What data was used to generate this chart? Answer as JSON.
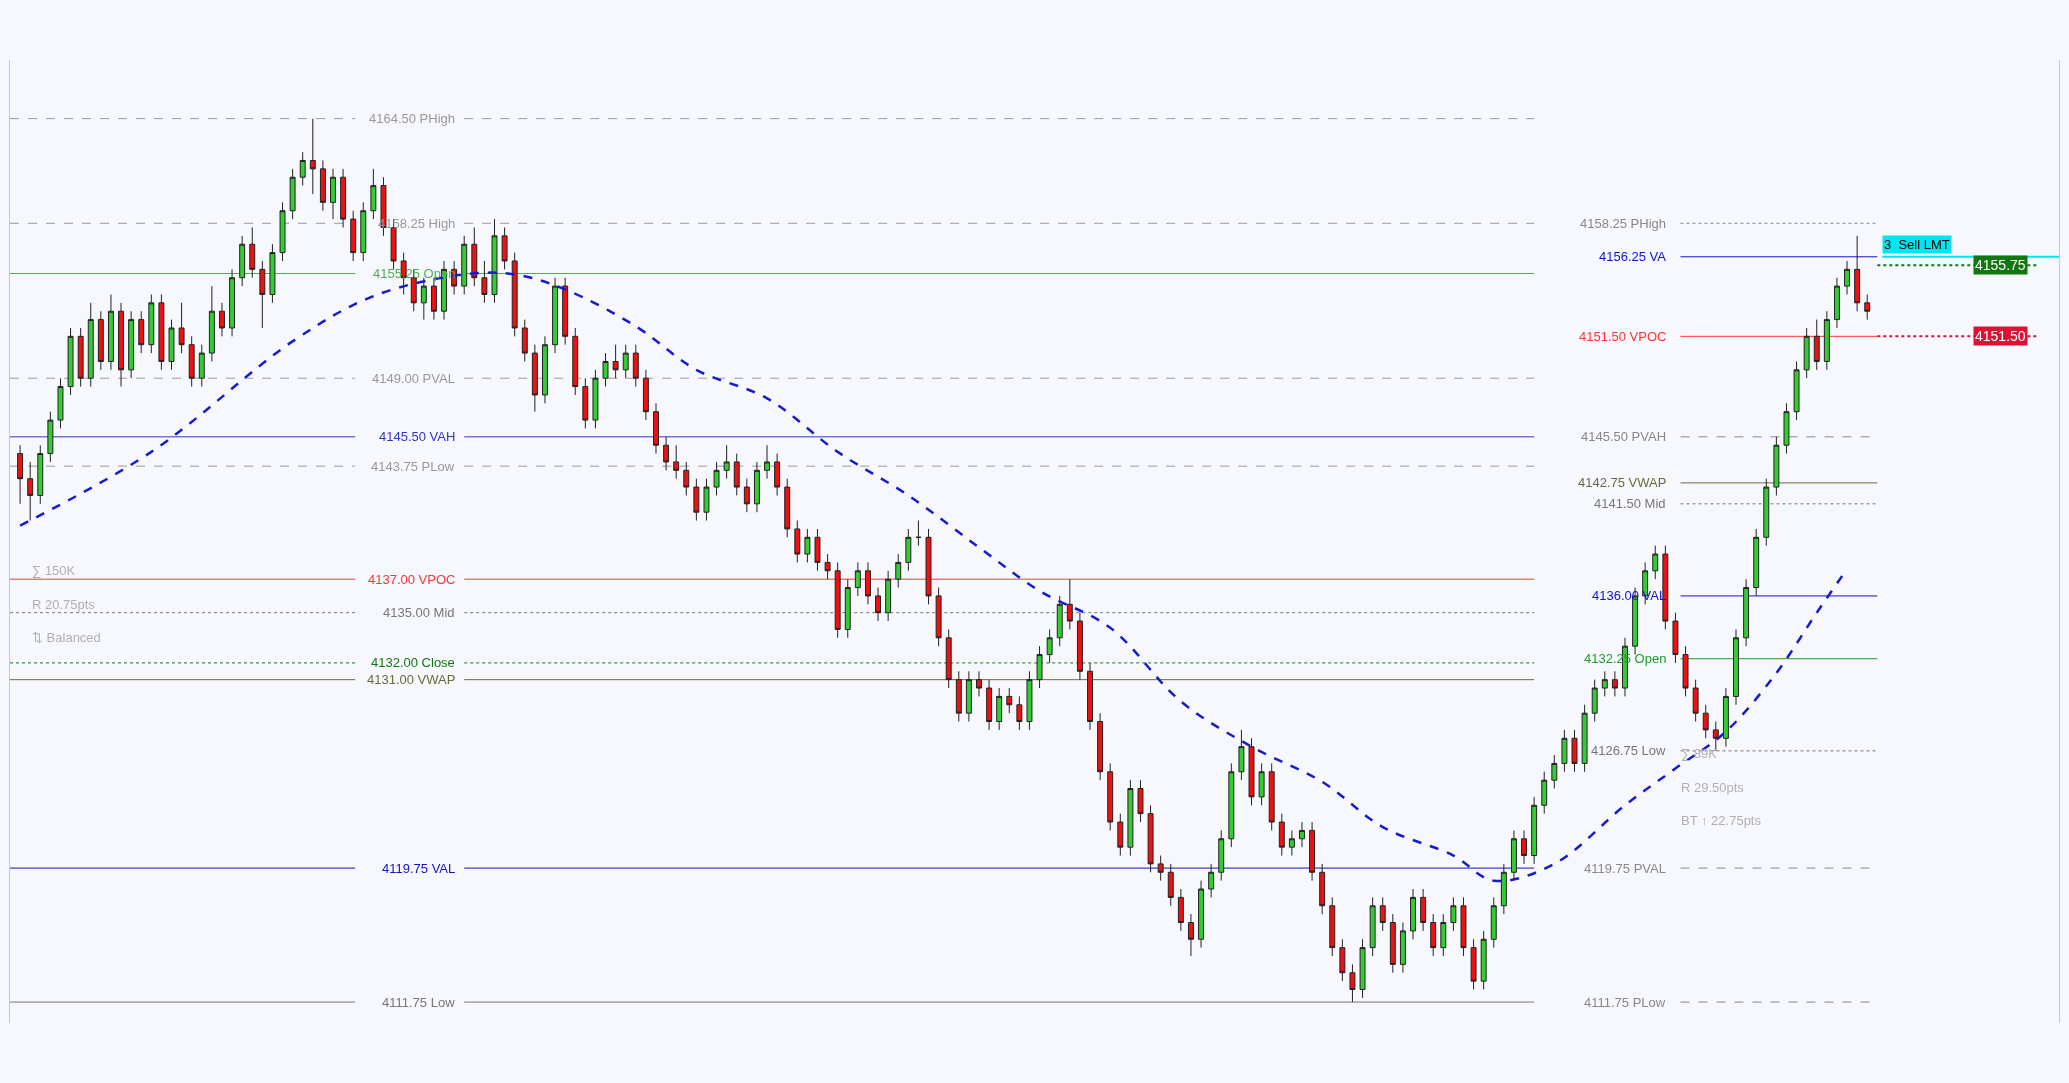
{
  "chart_data": {
    "type": "candlestick",
    "relative": false,
    "ylim": [
      4110.5,
      4168
    ],
    "categories": [
      null,
      null,
      null,
      null,
      null,
      null,
      null,
      null,
      null,
      null,
      null,
      null,
      null,
      null,
      null,
      null,
      null,
      null,
      null,
      null,
      null,
      null,
      null,
      null,
      null,
      null,
      null,
      null,
      null,
      null,
      null,
      null,
      null,
      null,
      null,
      null,
      null,
      null,
      null,
      null,
      null,
      null,
      null,
      null,
      null,
      null,
      null,
      null,
      null,
      null,
      null,
      null,
      null,
      null,
      null,
      null,
      null,
      null,
      null,
      null,
      null,
      null,
      null,
      null,
      null,
      null,
      null,
      null,
      null,
      null,
      null,
      null,
      null,
      null,
      null,
      null,
      null,
      null,
      null,
      null,
      null,
      null,
      null,
      null,
      null,
      null,
      null,
      null,
      null,
      null,
      null,
      null,
      null,
      null,
      null,
      null,
      null,
      null,
      null,
      null,
      null,
      null,
      null,
      null,
      null,
      null,
      null,
      null,
      null,
      null,
      null,
      null,
      null,
      null,
      null,
      null,
      null,
      null,
      null,
      null,
      null,
      null,
      null,
      null,
      null,
      null,
      null,
      null,
      null,
      null,
      null,
      null,
      null,
      null,
      null,
      null,
      null,
      null,
      null,
      null,
      null,
      null,
      null,
      null,
      null,
      null,
      null,
      null,
      null,
      null,
      null,
      null,
      null,
      null,
      null,
      null,
      null,
      null,
      null,
      null,
      null,
      null,
      null,
      null,
      null,
      null,
      null,
      null,
      null,
      null,
      null,
      null,
      null,
      null,
      null,
      null,
      null,
      null,
      null,
      null,
      null,
      null,
      null,
      null
    ],
    "ohlc": [
      [
        4144.5,
        4145,
        4141.5,
        4143
      ],
      [
        4143,
        4144,
        4140.5,
        4142
      ],
      [
        4142,
        4145,
        4141.5,
        4144.5
      ],
      [
        4144.5,
        4147,
        4144,
        4146.5
      ],
      [
        4146.5,
        4149,
        4146,
        4148.5
      ],
      [
        4148.5,
        4152,
        4148,
        4151.5
      ],
      [
        4151.5,
        4152,
        4148.5,
        4149
      ],
      [
        4149,
        4153.5,
        4148.5,
        4152.5
      ],
      [
        4152.5,
        4153,
        4149.5,
        4150
      ],
      [
        4150,
        4154,
        4149.5,
        4153
      ],
      [
        4153,
        4153.5,
        4148.5,
        4149.5
      ],
      [
        4149.5,
        4153,
        4149,
        4152.5
      ],
      [
        4152.5,
        4153,
        4150.5,
        4151
      ],
      [
        4151,
        4154,
        4150.5,
        4153.5
      ],
      [
        4153.5,
        4154,
        4149.5,
        4150
      ],
      [
        4150,
        4152.5,
        4149.5,
        4152
      ],
      [
        4152,
        4153.5,
        4150.5,
        4151
      ],
      [
        4151,
        4151.5,
        4148.5,
        4149
      ],
      [
        4149,
        4151,
        4148.5,
        4150.5
      ],
      [
        4150.5,
        4154.5,
        4150,
        4153
      ],
      [
        4153,
        4153.5,
        4151.5,
        4152
      ],
      [
        4152,
        4155.5,
        4151.5,
        4155
      ],
      [
        4155,
        4157.5,
        4154.5,
        4157
      ],
      [
        4157,
        4158,
        4155,
        4155.5
      ],
      [
        4155.5,
        4156,
        4152,
        4154
      ],
      [
        4154,
        4157,
        4153.5,
        4156.5
      ],
      [
        4156.5,
        4159.5,
        4156,
        4159
      ],
      [
        4159,
        4161.5,
        4158.5,
        4161
      ],
      [
        4161,
        4162.5,
        4160.5,
        4162
      ],
      [
        4162,
        4164.5,
        4160,
        4161.5
      ],
      [
        4161.5,
        4162,
        4159,
        4159.5
      ],
      [
        4159.5,
        4161.5,
        4158.5,
        4161
      ],
      [
        4161,
        4161.5,
        4158,
        4158.5
      ],
      [
        4158.5,
        4159,
        4156,
        4156.5
      ],
      [
        4156.5,
        4159.5,
        4156,
        4159
      ],
      [
        4159,
        4161.5,
        4158.5,
        4160.5
      ],
      [
        4160.5,
        4161,
        4157.5,
        4158
      ],
      [
        4158,
        4158.5,
        4155.5,
        4156
      ],
      [
        4156,
        4156.5,
        4154,
        4155
      ],
      [
        4155,
        4155.5,
        4153,
        4153.5
      ],
      [
        4153.5,
        4155,
        4152.5,
        4154.5
      ],
      [
        4154.5,
        4155,
        4152.5,
        4153
      ],
      [
        4153,
        4156,
        4152.5,
        4155.5
      ],
      [
        4155.5,
        4156,
        4154,
        4154.5
      ],
      [
        4154.5,
        4157.5,
        4154,
        4157
      ],
      [
        4157,
        4158,
        4154.5,
        4155
      ],
      [
        4155,
        4156,
        4153.5,
        4154
      ],
      [
        4154,
        4158.5,
        4153.5,
        4157.5
      ],
      [
        4157.5,
        4158,
        4155.5,
        4156
      ],
      [
        4156,
        4156.5,
        4151.5,
        4152
      ],
      [
        4152,
        4152.5,
        4150,
        4150.5
      ],
      [
        4150.5,
        4151,
        4147,
        4148
      ],
      [
        4148,
        4151.5,
        4147.5,
        4151
      ],
      [
        4151,
        4155,
        4150.5,
        4154.5
      ],
      [
        4154.5,
        4155,
        4151,
        4151.5
      ],
      [
        4151.5,
        4152,
        4148,
        4148.5
      ],
      [
        4148.5,
        4149,
        4146,
        4146.5
      ],
      [
        4146.5,
        4149.5,
        4146,
        4149
      ],
      [
        4149,
        4150.5,
        4148.5,
        4150
      ],
      [
        4150,
        4151,
        4149,
        4149.5
      ],
      [
        4149.5,
        4151,
        4149,
        4150.5
      ],
      [
        4150.5,
        4151,
        4148.5,
        4149
      ],
      [
        4149,
        4149.5,
        4146.5,
        4147
      ],
      [
        4147,
        4147.5,
        4144.5,
        4145
      ],
      [
        4145,
        4145.5,
        4143.5,
        4144
      ],
      [
        4144,
        4145,
        4143,
        4143.5
      ],
      [
        4143.5,
        4144,
        4142,
        4142.5
      ],
      [
        4142.5,
        4143,
        4140.5,
        4141
      ],
      [
        4141,
        4143,
        4140.5,
        4142.5
      ],
      [
        4142.5,
        4144,
        4142,
        4143.5
      ],
      [
        4143.5,
        4145,
        4143,
        4144
      ],
      [
        4144,
        4144.5,
        4142,
        4142.5
      ],
      [
        4142.5,
        4143,
        4141,
        4141.5
      ],
      [
        4141.5,
        4144,
        4141,
        4143.5
      ],
      [
        4143.5,
        4145,
        4143,
        4144
      ],
      [
        4144,
        4144.5,
        4142,
        4142.5
      ],
      [
        4142.5,
        4143,
        4139.5,
        4140
      ],
      [
        4140,
        4140.5,
        4138,
        4138.5
      ],
      [
        4138.5,
        4140,
        4138,
        4139.5
      ],
      [
        4139.5,
        4140,
        4137.5,
        4138
      ],
      [
        4138,
        4138.5,
        4137,
        4137.5
      ],
      [
        4137.5,
        4138,
        4133.5,
        4134
      ],
      [
        4134,
        4137,
        4133.5,
        4136.5
      ],
      [
        4136.5,
        4138,
        4136,
        4137.5
      ],
      [
        4137.5,
        4138,
        4135.5,
        4136
      ],
      [
        4136,
        4136.5,
        4134.5,
        4135
      ],
      [
        4135,
        4137.5,
        4134.5,
        4137
      ],
      [
        4137,
        4138.5,
        4136.5,
        4138
      ],
      [
        4138,
        4140,
        4137.5,
        4139.5
      ],
      [
        4139.5,
        4140.5,
        4139,
        4139.5
      ],
      [
        4139.5,
        4140,
        4135.5,
        4136
      ],
      [
        4136,
        4136.5,
        4133,
        4133.5
      ],
      [
        4133.5,
        4134,
        4130.5,
        4131
      ],
      [
        4131,
        4131.5,
        4128.5,
        4129
      ],
      [
        4129,
        4131.5,
        4128.5,
        4131
      ],
      [
        4131,
        4131.5,
        4130,
        4130.5
      ],
      [
        4130.5,
        4131,
        4128,
        4128.5
      ],
      [
        4128.5,
        4130.5,
        4128,
        4130
      ],
      [
        4130,
        4130.5,
        4129,
        4129.5
      ],
      [
        4129.5,
        4130,
        4128,
        4128.5
      ],
      [
        4128.5,
        4131.5,
        4128,
        4131
      ],
      [
        4131,
        4133,
        4130.5,
        4132.5
      ],
      [
        4132.5,
        4134,
        4132,
        4133.5
      ],
      [
        4133.5,
        4136,
        4133,
        4135.5
      ],
      [
        4135.5,
        4137,
        4134,
        4134.5
      ],
      [
        4134.5,
        4135,
        4131,
        4131.5
      ],
      [
        4131.5,
        4132,
        4128,
        4128.5
      ],
      [
        4128.5,
        4129,
        4125,
        4125.5
      ],
      [
        4125.5,
        4126,
        4122,
        4122.5
      ],
      [
        4122.5,
        4123,
        4120.5,
        4121
      ],
      [
        4121,
        4125,
        4120.5,
        4124.5
      ],
      [
        4124.5,
        4125,
        4122.5,
        4123
      ],
      [
        4123,
        4123.5,
        4119.5,
        4120
      ],
      [
        4120,
        4120.5,
        4119,
        4119.5
      ],
      [
        4119.5,
        4120,
        4117.5,
        4118
      ],
      [
        4118,
        4118.5,
        4116,
        4116.5
      ],
      [
        4116.5,
        4117,
        4114.5,
        4115.5
      ],
      [
        4115.5,
        4119,
        4115,
        4118.5
      ],
      [
        4118.5,
        4120,
        4118,
        4119.5
      ],
      [
        4119.5,
        4122,
        4119,
        4121.5
      ],
      [
        4121.5,
        4126,
        4121,
        4125.5
      ],
      [
        4125.5,
        4128,
        4125,
        4127
      ],
      [
        4127,
        4127.5,
        4123.5,
        4124
      ],
      [
        4124,
        4126,
        4123.5,
        4125.5
      ],
      [
        4125.5,
        4126,
        4122,
        4122.5
      ],
      [
        4122.5,
        4123,
        4120.5,
        4121
      ],
      [
        4121,
        4122,
        4120.5,
        4121.5
      ],
      [
        4121.5,
        4122.5,
        4121,
        4122
      ],
      [
        4122,
        4122.5,
        4119,
        4119.5
      ],
      [
        4119.5,
        4120,
        4117,
        4117.5
      ],
      [
        4117.5,
        4118,
        4114.5,
        4115
      ],
      [
        4115,
        4115.5,
        4113,
        4113.5
      ],
      [
        4113.5,
        4114,
        4111.75,
        4112.5
      ],
      [
        4112.5,
        4115.5,
        4112,
        4115
      ],
      [
        4115,
        4118,
        4114.5,
        4117.5
      ],
      [
        4117.5,
        4118,
        4116,
        4116.5
      ],
      [
        4116.5,
        4117,
        4113.5,
        4114
      ],
      [
        4114,
        4116.5,
        4113.5,
        4116
      ],
      [
        4116,
        4118.5,
        4115.5,
        4118
      ],
      [
        4118,
        4118.5,
        4116,
        4116.5
      ],
      [
        4116.5,
        4117,
        4114.5,
        4115
      ],
      [
        4115,
        4117,
        4114.5,
        4116.5
      ],
      [
        4116.5,
        4118,
        4116,
        4117.5
      ],
      [
        4117.5,
        4118,
        4114.5,
        4115
      ],
      [
        4115,
        4115.5,
        4112.5,
        4113
      ],
      [
        4113,
        4116,
        4112.5,
        4115.5
      ],
      [
        4115.5,
        4118,
        4115,
        4117.5
      ],
      [
        4117.5,
        4120,
        4117,
        4119.5
      ],
      [
        4119.5,
        4122,
        4119,
        4121.5
      ],
      [
        4121.5,
        4122,
        4120,
        4120.5
      ],
      [
        4120.5,
        4124,
        4120,
        4123.5
      ],
      [
        4123.5,
        4125.5,
        4123,
        4125
      ],
      [
        4125,
        4126.5,
        4124.5,
        4126
      ],
      [
        4126,
        4128,
        4125.5,
        4127.5
      ],
      [
        4127.5,
        4128,
        4125.5,
        4126
      ],
      [
        4126,
        4129.5,
        4125.5,
        4129
      ],
      [
        4129,
        4131,
        4128.5,
        4130.5
      ],
      [
        4130.5,
        4131.5,
        4130,
        4131
      ],
      [
        4131,
        4131.5,
        4130,
        4130.5
      ],
      [
        4130.5,
        4133.5,
        4130,
        4133
      ],
      [
        4133,
        4136.5,
        4132.5,
        4136
      ],
      [
        4136,
        4138,
        4135.5,
        4137.5
      ],
      [
        4137.5,
        4139,
        4137,
        4138.5
      ],
      [
        4138.5,
        4139,
        4134,
        4134.5
      ],
      [
        4134.5,
        4135,
        4132,
        4132.5
      ],
      [
        4132.5,
        4133,
        4130,
        4130.5
      ],
      [
        4130.5,
        4131,
        4128.5,
        4129
      ],
      [
        4129,
        4129.5,
        4127.5,
        4128
      ],
      [
        4128,
        4128.5,
        4126.75,
        4127.5
      ],
      [
        4127.5,
        4130.5,
        4127,
        4130
      ],
      [
        4130,
        4134,
        4129.5,
        4133.5
      ],
      [
        4133.5,
        4137,
        4133,
        4136.5
      ],
      [
        4136.5,
        4140,
        4136,
        4139.5
      ],
      [
        4139.5,
        4143,
        4139,
        4142.5
      ],
      [
        4142.5,
        4145.5,
        4142,
        4145
      ],
      [
        4145,
        4147.5,
        4144.5,
        4147
      ],
      [
        4147,
        4150,
        4146.5,
        4149.5
      ],
      [
        4149.5,
        4152,
        4149,
        4151.5
      ],
      [
        4151.5,
        4152.5,
        4149.5,
        4150
      ],
      [
        4150,
        4153,
        4149.5,
        4152.5
      ],
      [
        4152.5,
        4155,
        4152,
        4154.5
      ],
      [
        4154.5,
        4156,
        4154,
        4155.5
      ],
      [
        4155.5,
        4157.5,
        4153,
        4153.5
      ],
      [
        4153.5,
        4154,
        4152.5,
        4153
      ]
    ],
    "series": [
      {
        "type": "line",
        "color": "#1a1acc",
        "line_style": "dashed",
        "marker": "none",
        "values": [
          4140.2,
          null,
          null,
          null,
          null,
          null,
          null,
          null,
          null,
          null,
          null,
          null,
          null,
          4144.6,
          null,
          null,
          null,
          null,
          null,
          null,
          null,
          null,
          null,
          null,
          null,
          null,
          null,
          4151.2,
          null,
          null,
          null,
          null,
          null,
          null,
          null,
          4153.9,
          null,
          null,
          null,
          null,
          null,
          null,
          null,
          null,
          4155.2,
          null,
          null,
          null,
          null,
          4155.2,
          null,
          null,
          null,
          null,
          4154.3,
          null,
          null,
          null,
          null,
          null,
          null,
          4152.1,
          null,
          null,
          null,
          null,
          null,
          4149.5,
          null,
          null,
          null,
          null,
          null,
          null,
          4147.8,
          null,
          null,
          null,
          null,
          null,
          null,
          4144.6,
          null,
          null,
          null,
          null,
          null,
          null,
          4142,
          null,
          null,
          null,
          null,
          null,
          null,
          4138.9,
          null,
          null,
          null,
          null,
          null,
          4136.3,
          null,
          null,
          null,
          null,
          null,
          null,
          4134.1,
          null,
          null,
          null,
          null,
          null,
          null,
          4129.7,
          null,
          null,
          null,
          null,
          null,
          null,
          4127,
          null,
          null,
          null,
          null,
          null,
          null,
          4124.9,
          null,
          null,
          null,
          null,
          null,
          4122.2,
          null,
          null,
          null,
          null,
          null,
          null,
          4120.5,
          null,
          null,
          null,
          4119,
          null,
          null,
          null,
          null,
          null,
          4120,
          null,
          null,
          null,
          null,
          null,
          null,
          4123.5,
          null,
          null,
          null,
          null,
          4125.7,
          null,
          null,
          null,
          null,
          4127.9,
          null,
          null,
          null,
          null,
          4131.4,
          null,
          null,
          null,
          4135,
          null,
          null,
          4137.6,
          null,
          null
        ]
      }
    ],
    "ref_lines": [
      {
        "axis": "y",
        "value": 4164.5,
        "label": "4164.50 PHigh",
        "color": "#999999",
        "line_style": "dashed"
      },
      {
        "axis": "y",
        "value": 4158.25,
        "label": "4158.25 High",
        "color": "#999999",
        "line_style": "dashed"
      },
      {
        "axis": "y",
        "value": 4155.25,
        "label": "4155.25 Open",
        "color": "#55aa55",
        "line_style": "solid"
      },
      {
        "axis": "y",
        "value": 4149.0,
        "label": "4149.00 PVAL",
        "color": "#999999",
        "line_style": "dashed"
      },
      {
        "axis": "y",
        "value": 4145.5,
        "label": "4145.50 VAH",
        "color": "#3333cc",
        "line_style": "solid"
      },
      {
        "axis": "y",
        "value": 4143.75,
        "label": "4143.75 PLow",
        "color": "#999999",
        "line_style": "dashed"
      },
      {
        "axis": "y",
        "value": 4137.0,
        "label": "4137.00 VPOC",
        "color": "#ff3333",
        "line_style": "solid"
      },
      {
        "axis": "y",
        "value": 4135.0,
        "label": "4135.00 Mid",
        "color": "#777777",
        "line_style": "dotted"
      },
      {
        "axis": "y",
        "value": 4132.0,
        "label": "4132.00 Close",
        "color": "#117711",
        "line_style": "dotted"
      },
      {
        "axis": "y",
        "value": 4131.0,
        "label": "4131.00 VWAP",
        "color": "#6b6b3a",
        "line_style": "solid"
      },
      {
        "axis": "y",
        "value": 4119.75,
        "label": "4119.75 VAL",
        "color": "#1111cc",
        "line_style": "solid"
      },
      {
        "axis": "y",
        "value": 4111.75,
        "label": "4111.75 Low",
        "color": "#777777",
        "line_style": "solid"
      },
      {
        "axis": "y",
        "value": 4158.25,
        "label": "4158.25 PHigh",
        "color": "#888888",
        "line_style": "dotted"
      },
      {
        "axis": "y",
        "value": 4156.25,
        "label": "4156.25 VA",
        "color": "#1111cc",
        "line_style": "solid"
      },
      {
        "axis": "y",
        "value": 4151.5,
        "label": "4151.50 VPOC",
        "color": "#ff3333",
        "line_style": "solid"
      },
      {
        "axis": "y",
        "value": 4145.5,
        "label": "4145.50 PVAH",
        "color": "#888888",
        "line_style": "dashed"
      },
      {
        "axis": "y",
        "value": 4142.75,
        "label": "4142.75 VWAP",
        "color": "#6b6b3a",
        "line_style": "solid"
      },
      {
        "axis": "y",
        "value": 4141.5,
        "label": "4141.50 Mid",
        "color": "#777777",
        "line_style": "dotted"
      },
      {
        "axis": "y",
        "value": 4136.0,
        "label": "4136.00 VAL",
        "color": "#1111cc",
        "line_style": "solid"
      },
      {
        "axis": "y",
        "value": 4132.25,
        "label": "4132.25 Open",
        "color": "#229922",
        "line_style": "solid"
      },
      {
        "axis": "y",
        "value": 4126.75,
        "label": "4126.75 Low",
        "color": "#777777",
        "line_style": "dotted"
      },
      {
        "axis": "y",
        "value": 4119.75,
        "label": "4119.75 PVAL",
        "color": "#888888",
        "line_style": "dashed"
      },
      {
        "axis": "y",
        "value": 4111.75,
        "label": "4111.75 PLow",
        "color": "#888888",
        "line_style": "dashed"
      },
      {
        "axis": "y",
        "value": 4156.25,
        "label": "3  Sell LMT",
        "color": "#00e5ee",
        "line_style": "solid"
      },
      {
        "axis": "y",
        "value": 4155.75,
        "label": "4155.75",
        "color": "#117711",
        "line_style": "dotted"
      },
      {
        "axis": "y",
        "value": 4151.5,
        "label": "4151.50",
        "color": "#dd1133",
        "line_style": "dotted"
      }
    ],
    "annotations": [
      "∑ 150K",
      "R 20.75pts",
      "⇅ Balanced",
      "∑ 89K",
      "R 29.50pts",
      "BT ↑ 22.75pts"
    ],
    "grid": false,
    "legend": false
  }
}
